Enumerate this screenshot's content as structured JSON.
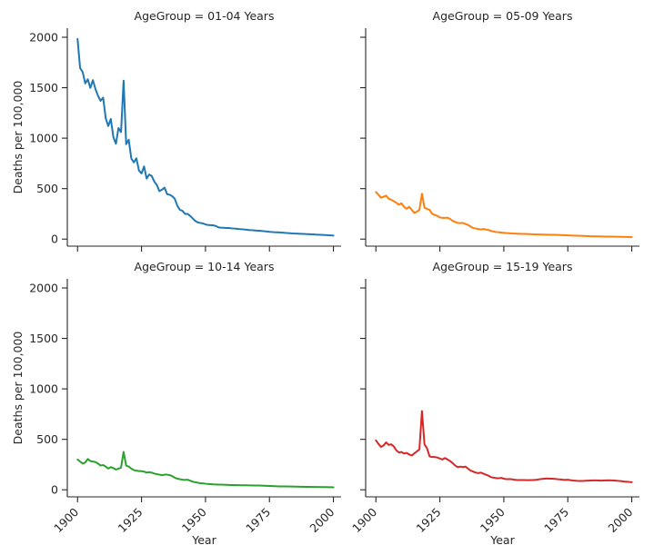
{
  "chart_data": {
    "type": "line",
    "facet_variable": "AgeGroup",
    "xlabel": "Year",
    "ylabel": "Deaths per 100,000",
    "xlim": [
      1896,
      2003
    ],
    "ylim": [
      -70,
      2090
    ],
    "x_ticks": [
      1900,
      1925,
      1950,
      1975,
      2000
    ],
    "y_ticks": [
      0,
      500,
      1000,
      1500,
      2000
    ],
    "shared_x": true,
    "shared_y": true,
    "grid": false,
    "panels": [
      {
        "title": "AgeGroup = 01-04 Years",
        "color": "#1f77b4",
        "x": [
          1900,
          1901,
          1902,
          1903,
          1904,
          1905,
          1906,
          1907,
          1908,
          1909,
          1910,
          1911,
          1912,
          1913,
          1914,
          1915,
          1916,
          1917,
          1918,
          1919,
          1920,
          1921,
          1922,
          1923,
          1924,
          1925,
          1926,
          1927,
          1928,
          1929,
          1930,
          1931,
          1932,
          1933,
          1934,
          1935,
          1936,
          1937,
          1938,
          1939,
          1940,
          1941,
          1942,
          1943,
          1944,
          1945,
          1946,
          1947,
          1948,
          1949,
          1950,
          1951,
          1952,
          1953,
          1954,
          1955,
          1956,
          1957,
          1958,
          1959,
          1960,
          1961,
          1962,
          1963,
          1964,
          1965,
          1966,
          1967,
          1968,
          1969,
          1970,
          1971,
          1972,
          1973,
          1974,
          1975,
          1976,
          1977,
          1978,
          1979,
          1980,
          1981,
          1982,
          1983,
          1984,
          1985,
          1986,
          1987,
          1988,
          1989,
          1990,
          1991,
          1992,
          1993,
          1994,
          1995,
          1996,
          1997,
          1998,
          1999,
          2000
        ],
        "values": [
          1983,
          1695,
          1655,
          1543,
          1583,
          1498,
          1575,
          1487,
          1420,
          1370,
          1402,
          1200,
          1120,
          1190,
          1010,
          945,
          1100,
          1060,
          1570,
          940,
          985,
          800,
          760,
          800,
          680,
          650,
          720,
          600,
          640,
          625,
          570,
          535,
          475,
          490,
          510,
          445,
          440,
          425,
          400,
          330,
          290,
          280,
          250,
          250,
          230,
          205,
          180,
          165,
          160,
          155,
          145,
          140,
          138,
          137,
          130,
          117,
          113,
          112,
          110,
          110,
          107,
          105,
          103,
          100,
          98,
          96,
          93,
          90,
          88,
          86,
          84,
          83,
          81,
          78,
          75,
          72,
          70,
          68,
          67,
          66,
          64,
          62,
          60,
          58,
          56,
          55,
          54,
          53,
          52,
          50,
          49,
          48,
          47,
          45,
          44,
          43,
          41,
          40,
          38,
          37,
          35
        ]
      },
      {
        "title": "AgeGroup = 05-09 Years",
        "color": "#ff7f0e",
        "x": [
          1900,
          1901,
          1902,
          1903,
          1904,
          1905,
          1906,
          1907,
          1908,
          1909,
          1910,
          1911,
          1912,
          1913,
          1914,
          1915,
          1916,
          1917,
          1918,
          1919,
          1920,
          1921,
          1922,
          1923,
          1924,
          1925,
          1926,
          1927,
          1928,
          1929,
          1930,
          1931,
          1932,
          1933,
          1934,
          1935,
          1936,
          1937,
          1938,
          1939,
          1940,
          1941,
          1942,
          1943,
          1944,
          1945,
          1946,
          1947,
          1948,
          1949,
          1950,
          1951,
          1952,
          1953,
          1954,
          1955,
          1956,
          1957,
          1958,
          1959,
          1960,
          1961,
          1962,
          1963,
          1964,
          1965,
          1966,
          1967,
          1968,
          1969,
          1970,
          1971,
          1972,
          1973,
          1974,
          1975,
          1976,
          1977,
          1978,
          1979,
          1980,
          1981,
          1982,
          1983,
          1984,
          1985,
          1986,
          1987,
          1988,
          1989,
          1990,
          1991,
          1992,
          1993,
          1994,
          1995,
          1996,
          1997,
          1998,
          1999,
          2000
        ],
        "values": [
          466,
          440,
          410,
          420,
          430,
          400,
          390,
          375,
          360,
          340,
          355,
          320,
          300,
          320,
          290,
          260,
          270,
          290,
          450,
          310,
          300,
          290,
          250,
          240,
          230,
          215,
          210,
          210,
          212,
          200,
          180,
          170,
          160,
          158,
          160,
          150,
          140,
          125,
          110,
          105,
          100,
          95,
          100,
          95,
          90,
          80,
          75,
          70,
          68,
          65,
          62,
          60,
          58,
          56,
          55,
          54,
          53,
          52,
          51,
          50,
          49,
          48,
          47,
          46,
          45,
          45,
          44,
          44,
          43,
          43,
          42,
          41,
          40,
          39,
          38,
          37,
          36,
          35,
          34,
          33,
          32,
          31,
          30,
          29,
          28,
          28,
          27,
          27,
          26,
          26,
          25,
          25,
          24,
          24,
          23,
          23,
          22,
          22,
          21,
          21,
          20
        ]
      },
      {
        "title": "AgeGroup = 10-14 Years",
        "color": "#2ca02c",
        "x": [
          1900,
          1901,
          1902,
          1903,
          1904,
          1905,
          1906,
          1907,
          1908,
          1909,
          1910,
          1911,
          1912,
          1913,
          1914,
          1915,
          1916,
          1917,
          1918,
          1919,
          1920,
          1921,
          1922,
          1923,
          1924,
          1925,
          1926,
          1927,
          1928,
          1929,
          1930,
          1931,
          1932,
          1933,
          1934,
          1935,
          1936,
          1937,
          1938,
          1939,
          1940,
          1941,
          1942,
          1943,
          1944,
          1945,
          1946,
          1947,
          1948,
          1949,
          1950,
          1951,
          1952,
          1953,
          1954,
          1955,
          1956,
          1957,
          1958,
          1959,
          1960,
          1961,
          1962,
          1963,
          1964,
          1965,
          1966,
          1967,
          1968,
          1969,
          1970,
          1971,
          1972,
          1973,
          1974,
          1975,
          1976,
          1977,
          1978,
          1979,
          1980,
          1981,
          1982,
          1983,
          1984,
          1985,
          1986,
          1987,
          1988,
          1989,
          1990,
          1991,
          1992,
          1993,
          1994,
          1995,
          1996,
          1997,
          1998,
          1999,
          2000
        ],
        "values": [
          300,
          280,
          260,
          270,
          305,
          285,
          280,
          275,
          260,
          240,
          245,
          230,
          210,
          225,
          215,
          200,
          210,
          220,
          375,
          240,
          230,
          210,
          195,
          190,
          185,
          185,
          180,
          170,
          175,
          170,
          160,
          155,
          150,
          145,
          150,
          150,
          145,
          135,
          120,
          110,
          105,
          100,
          98,
          100,
          90,
          80,
          75,
          70,
          65,
          64,
          60,
          58,
          56,
          54,
          53,
          52,
          51,
          50,
          49,
          48,
          47,
          47,
          46,
          46,
          45,
          45,
          45,
          44,
          44,
          43,
          43,
          42,
          41,
          40,
          39,
          38,
          37,
          36,
          35,
          34,
          34,
          33,
          33,
          32,
          32,
          31,
          31,
          30,
          30,
          29,
          29,
          29,
          28,
          28,
          28,
          27,
          27,
          27,
          26,
          26,
          25
        ]
      },
      {
        "title": "AgeGroup = 15-19 Years",
        "color": "#d62728",
        "x": [
          1900,
          1901,
          1902,
          1903,
          1904,
          1905,
          1906,
          1907,
          1908,
          1909,
          1910,
          1911,
          1912,
          1913,
          1914,
          1915,
          1916,
          1917,
          1918,
          1919,
          1920,
          1921,
          1922,
          1923,
          1924,
          1925,
          1926,
          1927,
          1928,
          1929,
          1930,
          1931,
          1932,
          1933,
          1934,
          1935,
          1936,
          1937,
          1938,
          1939,
          1940,
          1941,
          1942,
          1943,
          1944,
          1945,
          1946,
          1947,
          1948,
          1949,
          1950,
          1951,
          1952,
          1953,
          1954,
          1955,
          1956,
          1957,
          1958,
          1959,
          1960,
          1961,
          1962,
          1963,
          1964,
          1965,
          1966,
          1967,
          1968,
          1969,
          1970,
          1971,
          1972,
          1973,
          1974,
          1975,
          1976,
          1977,
          1978,
          1979,
          1980,
          1981,
          1982,
          1983,
          1984,
          1985,
          1986,
          1987,
          1988,
          1989,
          1990,
          1991,
          1992,
          1993,
          1994,
          1995,
          1996,
          1997,
          1998,
          1999,
          2000
        ],
        "values": [
          490,
          455,
          425,
          440,
          470,
          445,
          450,
          430,
          390,
          370,
          375,
          360,
          365,
          350,
          340,
          360,
          380,
          400,
          780,
          450,
          410,
          330,
          325,
          325,
          320,
          310,
          300,
          315,
          300,
          285,
          265,
          240,
          225,
          230,
          225,
          230,
          210,
          190,
          180,
          170,
          165,
          170,
          160,
          150,
          140,
          125,
          120,
          115,
          115,
          118,
          110,
          105,
          105,
          105,
          100,
          98,
          97,
          97,
          96,
          95,
          95,
          96,
          98,
          100,
          105,
          108,
          110,
          112,
          110,
          110,
          108,
          105,
          103,
          100,
          98,
          100,
          95,
          92,
          90,
          88,
          87,
          88,
          90,
          91,
          92,
          93,
          93,
          92,
          91,
          92,
          93,
          94,
          93,
          92,
          90,
          88,
          85,
          82,
          80,
          78,
          75
        ]
      }
    ]
  }
}
